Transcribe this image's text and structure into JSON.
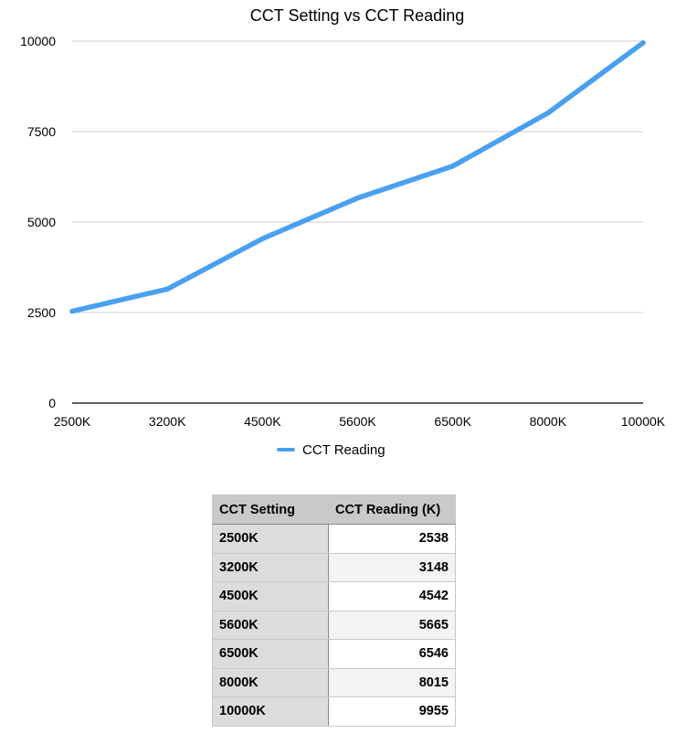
{
  "chart_data": {
    "type": "line",
    "title": "CCT Setting vs CCT Reading",
    "xlabel": "",
    "ylabel": "",
    "categories": [
      "2500K",
      "3200K",
      "4500K",
      "5600K",
      "6500K",
      "8000K",
      "10000K"
    ],
    "series": [
      {
        "name": "CCT Reading",
        "values": [
          2538,
          3148,
          4542,
          5665,
          6546,
          8015,
          9955
        ],
        "color": "#4aa0f0"
      }
    ],
    "ylim": [
      0,
      10000
    ],
    "yticks": [
      0,
      2500,
      5000,
      7500,
      10000
    ],
    "grid": true,
    "legend": "bottom-center"
  },
  "table": {
    "headers": [
      "CCT Setting",
      "CCT Reading (K)"
    ],
    "rows": [
      [
        "2500K",
        "2538"
      ],
      [
        "3200K",
        "3148"
      ],
      [
        "4500K",
        "4542"
      ],
      [
        "5600K",
        "5665"
      ],
      [
        "6500K",
        "6546"
      ],
      [
        "8000K",
        "8015"
      ],
      [
        "10000K",
        "9955"
      ]
    ]
  }
}
